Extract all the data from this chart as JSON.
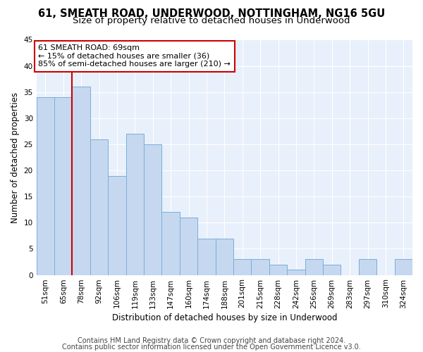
{
  "title": "61, SMEATH ROAD, UNDERWOOD, NOTTINGHAM, NG16 5GU",
  "subtitle": "Size of property relative to detached houses in Underwood",
  "xlabel": "Distribution of detached houses by size in Underwood",
  "ylabel": "Number of detached properties",
  "categories": [
    "51sqm",
    "65sqm",
    "78sqm",
    "92sqm",
    "106sqm",
    "119sqm",
    "133sqm",
    "147sqm",
    "160sqm",
    "174sqm",
    "188sqm",
    "201sqm",
    "215sqm",
    "228sqm",
    "242sqm",
    "256sqm",
    "269sqm",
    "283sqm",
    "297sqm",
    "310sqm",
    "324sqm"
  ],
  "values": [
    34,
    34,
    36,
    26,
    19,
    27,
    25,
    12,
    11,
    7,
    7,
    3,
    3,
    2,
    1,
    3,
    2,
    0,
    3,
    0,
    3
  ],
  "bar_color": "#c5d8f0",
  "bar_edge_color": "#7aaed6",
  "vline_x": 1.5,
  "vline_color": "#cc0000",
  "annotation_line1": "61 SMEATH ROAD: 69sqm",
  "annotation_line2": "← 15% of detached houses are smaller (36)",
  "annotation_line3": "85% of semi-detached houses are larger (210) →",
  "annotation_box_color": "#ffffff",
  "annotation_box_edge": "#cc0000",
  "ylim": [
    0,
    45
  ],
  "yticks": [
    0,
    5,
    10,
    15,
    20,
    25,
    30,
    35,
    40,
    45
  ],
  "footer1": "Contains HM Land Registry data © Crown copyright and database right 2024.",
  "footer2": "Contains public sector information licensed under the Open Government Licence v3.0.",
  "bg_color": "#e8f0fb",
  "fig_bg_color": "#ffffff",
  "title_fontsize": 10.5,
  "subtitle_fontsize": 9.5,
  "tick_fontsize": 7.5,
  "ylabel_fontsize": 8.5,
  "xlabel_fontsize": 8.5,
  "footer_fontsize": 7
}
